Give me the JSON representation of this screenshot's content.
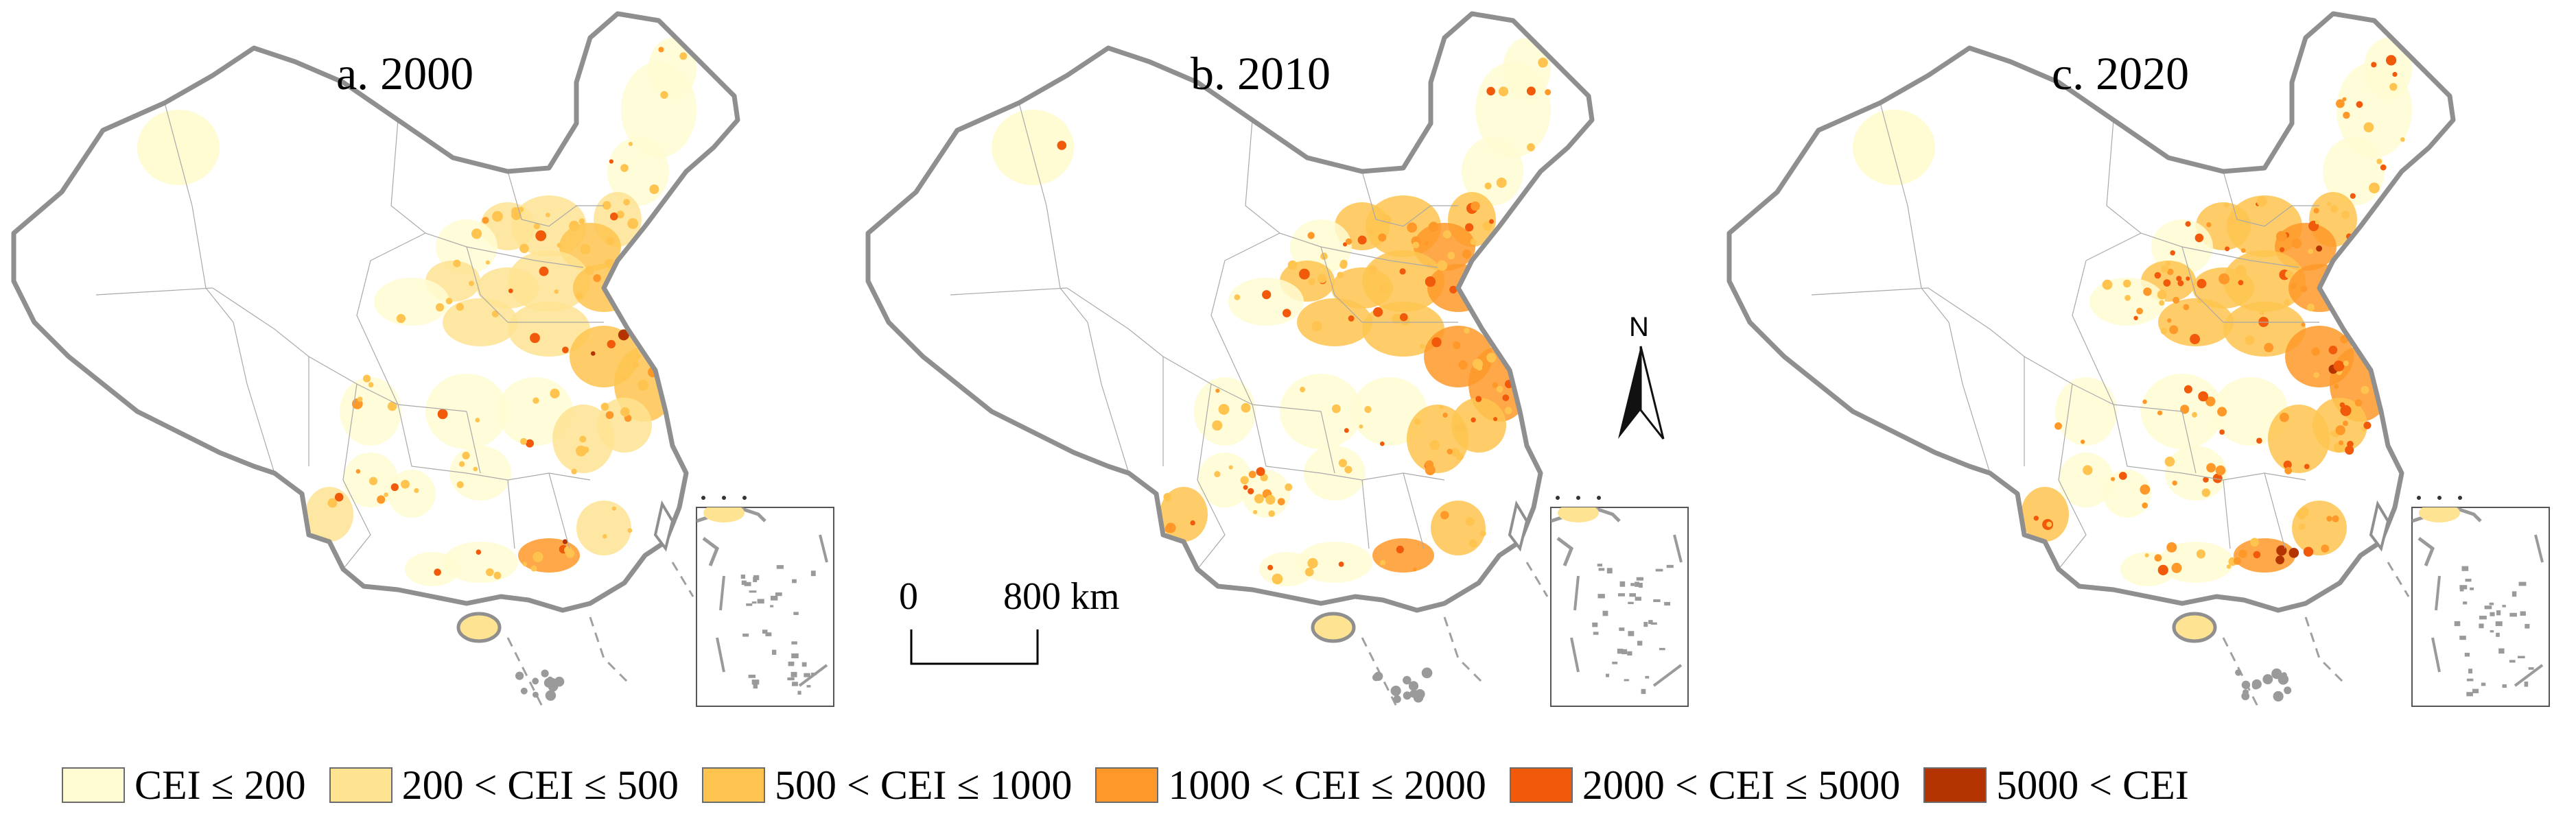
{
  "panels": [
    {
      "title": "a. 2000",
      "intensity": 0.15
    },
    {
      "title": "b. 2010",
      "intensity": 0.28
    },
    {
      "title": "c. 2020",
      "intensity": 0.4
    }
  ],
  "scale_bar": {
    "start_label": "0",
    "end_label": "800 km"
  },
  "north_arrow": {
    "label": "N"
  },
  "legend": [
    {
      "label": "CEI ≤ 200",
      "color": "#FFFBD2"
    },
    {
      "label": "200 < CEI ≤ 500",
      "color": "#FEE392"
    },
    {
      "label": "500 < CEI ≤ 1000",
      "color": "#FEC44F"
    },
    {
      "label": "1000 < CEI ≤ 2000",
      "color": "#FE9929"
    },
    {
      "label": "2000 < CEI ≤ 5000",
      "color": "#F05A0A"
    },
    {
      "label": "5000 < CEI",
      "color": "#B33400"
    }
  ]
}
